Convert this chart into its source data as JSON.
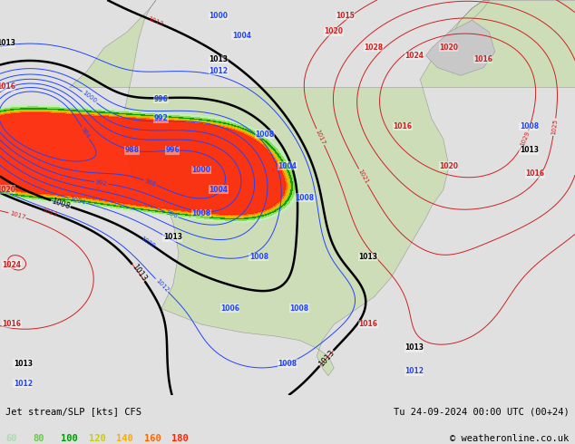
{
  "title_left": "Jet stream/SLP [kts] CFS",
  "title_right": "Tu 24-09-2024 00:00 UTC (00+24)",
  "copyright": "© weatheronline.co.uk",
  "legend_values": [
    60,
    80,
    100,
    120,
    140,
    160,
    180
  ],
  "legend_colors": [
    "#aaddaa",
    "#66cc44",
    "#009900",
    "#cccc00",
    "#ffaa00",
    "#ff6600",
    "#ff2200"
  ],
  "bg_color": "#ddeeff",
  "land_color_light": "#d8edd8",
  "land_color_main": "#c8ddb8",
  "ocean_color": "#c8dcee",
  "fig_width": 6.34,
  "fig_height": 4.9,
  "dpi": 100,
  "jet_colors": [
    "#c0f0c0",
    "#88dd44",
    "#009900",
    "#cccc00",
    "#ffaa00",
    "#ff6600",
    "#ff2200"
  ],
  "jet_thresholds": [
    60,
    80,
    100,
    120,
    140,
    160,
    180
  ]
}
